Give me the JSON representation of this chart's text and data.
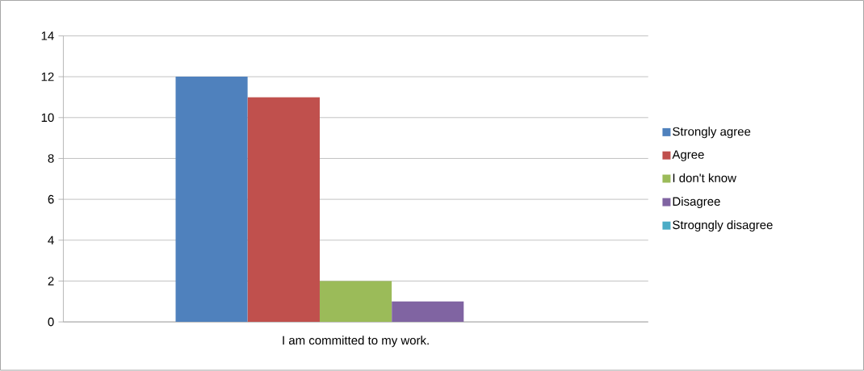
{
  "chart_data": {
    "type": "bar",
    "categories": [
      "I am committed to my work."
    ],
    "series": [
      {
        "name": "Strongly agree",
        "color": "#4f81bd",
        "values": [
          12
        ]
      },
      {
        "name": "Agree",
        "color": "#c0504d",
        "values": [
          11
        ]
      },
      {
        "name": "I don't know",
        "color": "#9bbb59",
        "values": [
          2
        ]
      },
      {
        "name": "Disagree",
        "color": "#8064a2",
        "values": [
          1
        ]
      },
      {
        "name": "Strogngly disagree",
        "color": "#4bacc6",
        "values": [
          0
        ]
      }
    ],
    "ylim": [
      0,
      14
    ],
    "yticks": [
      0,
      2,
      4,
      6,
      8,
      10,
      12,
      14
    ],
    "grid": "y",
    "legend": "right"
  }
}
